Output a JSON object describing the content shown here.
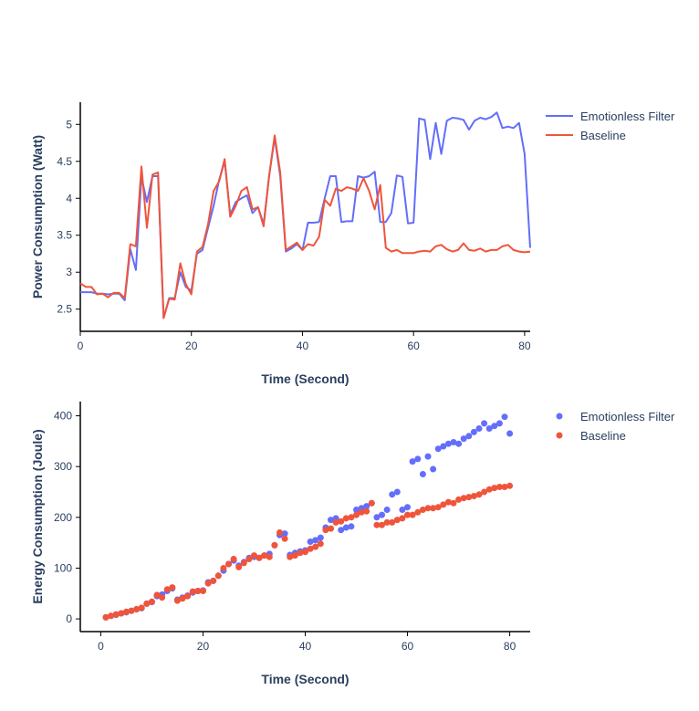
{
  "colors": {
    "emotionless": "#636efa",
    "baseline": "#ef553b",
    "axis": "#000000",
    "text": "#2a3f5f"
  },
  "chart_data": [
    {
      "type": "line",
      "xlabel": "Time (Second)",
      "ylabel": "Power Consumption (Watt)",
      "xlim": [
        0,
        81
      ],
      "ylim": [
        2.2,
        5.3
      ],
      "xticks": [
        0,
        20,
        40,
        60,
        80
      ],
      "yticks": [
        2.5,
        3,
        3.5,
        4,
        4.5,
        5
      ],
      "legend_position": "top-right",
      "series": [
        {
          "name": "Emotionless Filter",
          "x": [
            0,
            1,
            2,
            3,
            4,
            5,
            6,
            7,
            8,
            9,
            10,
            11,
            12,
            13,
            14,
            15,
            16,
            17,
            18,
            19,
            20,
            21,
            22,
            23,
            24,
            25,
            26,
            27,
            28,
            29,
            30,
            31,
            32,
            33,
            34,
            35,
            36,
            37,
            38,
            39,
            40,
            41,
            42,
            43,
            44,
            45,
            46,
            47,
            48,
            49,
            50,
            51,
            52,
            53,
            54,
            55,
            56,
            57,
            58,
            59,
            60,
            61,
            62,
            63,
            64,
            65,
            66,
            67,
            68,
            69,
            70,
            71,
            72,
            73,
            74,
            75,
            76,
            77,
            78,
            79,
            80,
            81
          ],
          "values": [
            2.73,
            2.73,
            2.73,
            2.71,
            2.71,
            2.7,
            2.71,
            2.71,
            2.62,
            3.31,
            3.03,
            4.29,
            3.95,
            4.3,
            4.3,
            2.38,
            2.65,
            2.65,
            3.0,
            2.8,
            2.75,
            3.25,
            3.3,
            3.6,
            3.9,
            4.25,
            4.5,
            3.78,
            3.95,
            4.0,
            4.04,
            3.8,
            3.88,
            3.65,
            4.3,
            4.82,
            4.3,
            3.28,
            3.32,
            3.38,
            3.3,
            3.67,
            3.67,
            3.68,
            4.0,
            4.3,
            4.3,
            3.68,
            3.69,
            3.69,
            4.3,
            4.28,
            4.3,
            4.36,
            3.68,
            3.68,
            3.8,
            4.31,
            4.29,
            3.66,
            3.67,
            5.08,
            5.06,
            4.53,
            5.02,
            4.6,
            5.05,
            5.09,
            5.08,
            5.06,
            4.93,
            5.05,
            5.09,
            5.07,
            5.1,
            5.16,
            4.95,
            4.97,
            4.95,
            5.02,
            4.6,
            3.33
          ]
        },
        {
          "name": "Baseline",
          "x": [
            0,
            1,
            2,
            3,
            4,
            5,
            6,
            7,
            8,
            9,
            10,
            11,
            12,
            13,
            14,
            15,
            16,
            17,
            18,
            19,
            20,
            21,
            22,
            23,
            24,
            25,
            26,
            27,
            28,
            29,
            30,
            31,
            32,
            33,
            34,
            35,
            36,
            37,
            38,
            39,
            40,
            41,
            42,
            43,
            44,
            45,
            46,
            47,
            48,
            49,
            50,
            51,
            52,
            53,
            54,
            55,
            56,
            57,
            58,
            59,
            60,
            61,
            62,
            63,
            64,
            65,
            66,
            67,
            68,
            69,
            70,
            71,
            72,
            73,
            74,
            75,
            76,
            77,
            78,
            79,
            80,
            81
          ],
          "values": [
            2.85,
            2.8,
            2.8,
            2.7,
            2.71,
            2.66,
            2.72,
            2.72,
            2.65,
            3.38,
            3.35,
            4.43,
            3.6,
            4.32,
            4.35,
            2.38,
            2.64,
            2.63,
            3.12,
            2.84,
            2.7,
            3.28,
            3.34,
            3.65,
            4.1,
            4.23,
            4.53,
            3.75,
            3.9,
            4.1,
            4.15,
            3.85,
            3.88,
            3.62,
            4.3,
            4.85,
            4.35,
            3.3,
            3.35,
            3.4,
            3.3,
            3.38,
            3.36,
            3.48,
            3.98,
            3.9,
            4.13,
            4.1,
            4.15,
            4.13,
            4.1,
            4.27,
            4.1,
            3.85,
            4.18,
            3.33,
            3.28,
            3.3,
            3.26,
            3.26,
            3.26,
            3.28,
            3.29,
            3.28,
            3.35,
            3.37,
            3.31,
            3.28,
            3.3,
            3.39,
            3.3,
            3.29,
            3.32,
            3.28,
            3.3,
            3.3,
            3.35,
            3.37,
            3.3,
            3.28,
            3.27,
            3.28
          ]
        }
      ]
    },
    {
      "type": "scatter",
      "xlabel": "Time (Second)",
      "ylabel": "Energy Consumption (Joule)",
      "xlim": [
        -4,
        84
      ],
      "ylim": [
        -25,
        428
      ],
      "xticks": [
        0,
        20,
        40,
        60,
        80
      ],
      "yticks": [
        0,
        100,
        200,
        300,
        400
      ],
      "legend_position": "top-right",
      "series": [
        {
          "name": "Emotionless Filter",
          "x": [
            1,
            2,
            3,
            4,
            5,
            6,
            7,
            8,
            9,
            10,
            11,
            12,
            13,
            14,
            15,
            16,
            17,
            18,
            19,
            20,
            21,
            22,
            23,
            24,
            25,
            26,
            27,
            28,
            29,
            30,
            31,
            32,
            33,
            34,
            35,
            36,
            37,
            38,
            39,
            40,
            41,
            42,
            43,
            44,
            45,
            46,
            47,
            48,
            49,
            50,
            51,
            52,
            53,
            54,
            55,
            56,
            57,
            58,
            59,
            60,
            61,
            62,
            63,
            64,
            65,
            66,
            67,
            68,
            69,
            70,
            71,
            72,
            73,
            74,
            75,
            76,
            77,
            78,
            79,
            80
          ],
          "values": [
            3,
            6,
            8,
            11,
            13,
            16,
            19,
            21,
            30,
            33,
            45,
            48,
            55,
            60,
            38,
            42,
            46,
            52,
            55,
            56,
            72,
            75,
            85,
            95,
            108,
            115,
            105,
            112,
            120,
            122,
            120,
            125,
            128,
            145,
            165,
            168,
            126,
            130,
            133,
            135,
            152,
            155,
            160,
            180,
            195,
            198,
            175,
            180,
            182,
            215,
            218,
            222,
            228,
            200,
            205,
            215,
            245,
            250,
            215,
            220,
            310,
            315,
            285,
            320,
            295,
            335,
            340,
            345,
            348,
            345,
            355,
            360,
            368,
            375,
            385,
            375,
            380,
            385,
            398,
            365
          ]
        },
        {
          "name": "Baseline",
          "x": [
            1,
            2,
            3,
            4,
            5,
            6,
            7,
            8,
            9,
            10,
            11,
            12,
            13,
            14,
            15,
            16,
            17,
            18,
            19,
            20,
            21,
            22,
            23,
            24,
            25,
            26,
            27,
            28,
            29,
            30,
            31,
            32,
            33,
            34,
            35,
            36,
            37,
            38,
            39,
            40,
            41,
            42,
            43,
            44,
            45,
            46,
            47,
            48,
            49,
            50,
            51,
            52,
            53,
            54,
            55,
            56,
            57,
            58,
            59,
            60,
            61,
            62,
            63,
            64,
            65,
            66,
            67,
            68,
            69,
            70,
            71,
            72,
            73,
            74,
            75,
            76,
            77,
            78,
            79,
            80
          ],
          "values": [
            3,
            6,
            9,
            11,
            14,
            16,
            19,
            22,
            30,
            34,
            47,
            42,
            58,
            62,
            36,
            40,
            45,
            54,
            55,
            55,
            70,
            75,
            85,
            100,
            108,
            118,
            102,
            110,
            118,
            125,
            120,
            125,
            122,
            145,
            170,
            158,
            122,
            125,
            130,
            132,
            138,
            142,
            148,
            175,
            178,
            190,
            192,
            198,
            200,
            205,
            210,
            212,
            228,
            185,
            185,
            190,
            190,
            195,
            198,
            205,
            205,
            210,
            215,
            218,
            218,
            220,
            225,
            230,
            228,
            235,
            238,
            240,
            242,
            245,
            250,
            255,
            258,
            260,
            260,
            262
          ]
        }
      ]
    }
  ]
}
